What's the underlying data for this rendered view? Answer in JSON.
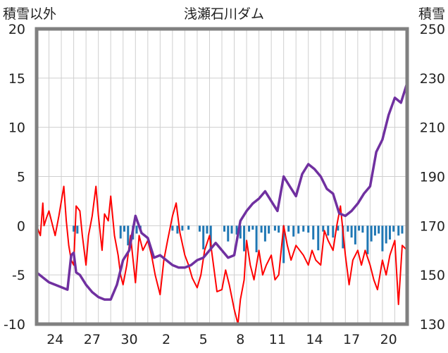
{
  "chart_data": {
    "type": "line",
    "title": "浅瀬石川ダム",
    "left_axis_label": "積雪以外",
    "right_axis_label": "積雪",
    "left_ylim": [
      -10,
      20
    ],
    "left_ticks": [
      20,
      15,
      10,
      5,
      0,
      -5,
      -10
    ],
    "right_ylim": [
      130,
      250
    ],
    "right_ticks": [
      250,
      230,
      210,
      190,
      170,
      150,
      130
    ],
    "x_range_days": [
      0,
      30
    ],
    "x_ticks": [
      {
        "day": 1.5,
        "label": "24"
      },
      {
        "day": 4.5,
        "label": "27"
      },
      {
        "day": 7.5,
        "label": "30"
      },
      {
        "day": 10.5,
        "label": "2"
      },
      {
        "day": 13.5,
        "label": "5"
      },
      {
        "day": 16.5,
        "label": "8"
      },
      {
        "day": 19.5,
        "label": "11"
      },
      {
        "day": 22.5,
        "label": "14"
      },
      {
        "day": 25.5,
        "label": "17"
      },
      {
        "day": 28.5,
        "label": "20"
      }
    ],
    "grid": true,
    "colors": {
      "red_series": "#ff0000",
      "purple_series": "#7030a0",
      "bars": "#1f77b4",
      "frame": "#808080"
    },
    "series": [
      {
        "axis": "left",
        "color": "#ff0000",
        "x": [
          0,
          0.3,
          0.5,
          0.6,
          0.8,
          1.0,
          1.2,
          1.5,
          1.8,
          2.0,
          2.2,
          2.4,
          2.6,
          2.8,
          3.0,
          3.2,
          3.5,
          3.7,
          4.0,
          4.2,
          4.5,
          4.8,
          5.0,
          5.3,
          5.5,
          5.8,
          6.0,
          6.3,
          6.6,
          6.8,
          7.0,
          7.3,
          7.6,
          8.0,
          8.3,
          8.6,
          9.0,
          9.3,
          9.6,
          10.0,
          10.3,
          10.6,
          11.0,
          11.3,
          11.6,
          12.0,
          12.3,
          12.6,
          13.0,
          13.3,
          13.6,
          14.0,
          14.3,
          14.6,
          15.0,
          15.3,
          15.6,
          16.0,
          16.3,
          16.5,
          16.8,
          17.0,
          17.3,
          17.6,
          18.0,
          18.3,
          18.6,
          19.0,
          19.3,
          19.6,
          20.0,
          20.3,
          20.6,
          21.0,
          21.3,
          21.6,
          22.0,
          22.3,
          22.6,
          23.0,
          23.3,
          23.6,
          24.0,
          24.3,
          24.6,
          25.0,
          25.3,
          25.6,
          26.0,
          26.3,
          26.6,
          27.0,
          27.3,
          27.6,
          28.0,
          28.3,
          28.6,
          29.0,
          29.3,
          29.6,
          30.0
        ],
        "values": [
          0,
          -1,
          2.3,
          0,
          0.8,
          1.5,
          0.5,
          -1,
          1,
          2.5,
          4,
          0.5,
          -2,
          -3.5,
          -4,
          2,
          1.5,
          -1,
          -4,
          -1,
          1,
          4,
          1,
          -2.5,
          1.2,
          0.5,
          3,
          -1,
          -3,
          -5,
          -6,
          -4,
          -1,
          -5.8,
          -1,
          -2.5,
          -1.5,
          -3,
          -5,
          -7,
          -3.5,
          -1.5,
          1,
          2.3,
          -0.7,
          -3,
          -4,
          -5.3,
          -6.3,
          -5,
          -2.5,
          -1,
          -3.8,
          -6.7,
          -6.5,
          -4.5,
          -6,
          -8.5,
          -10,
          -7.5,
          -5.5,
          -1.5,
          -4,
          -5.5,
          -2.5,
          -5,
          -4,
          -3,
          -5.5,
          -5,
          0,
          -2,
          -3.5,
          -2,
          -2.5,
          -3,
          -4,
          -2.5,
          -3.5,
          -4,
          -0.5,
          -1.5,
          -2.5,
          0,
          2,
          -3,
          -6,
          -3.5,
          -2.5,
          -4,
          -2.5,
          -4,
          -5.5,
          -6.5,
          -3.5,
          -5,
          -3,
          -1.5,
          -8,
          -2,
          -2.5
        ]
      },
      {
        "axis": "right",
        "color": "#7030a0",
        "x": [
          0,
          0.5,
          1.0,
          1.5,
          2.0,
          2.5,
          2.8,
          3.0,
          3.2,
          3.5,
          4.0,
          4.5,
          5.0,
          5.5,
          6.0,
          6.5,
          6.8,
          7.0,
          7.5,
          8.0,
          8.5,
          9.0,
          9.5,
          10.0,
          10.5,
          11.0,
          11.5,
          12.0,
          12.5,
          13.0,
          13.5,
          14.0,
          14.5,
          15.0,
          15.5,
          16.0,
          16.5,
          17.0,
          17.5,
          18.0,
          18.5,
          19.0,
          19.5,
          20.0,
          20.5,
          21.0,
          21.5,
          22.0,
          22.5,
          23.0,
          23.5,
          24.0,
          24.5,
          25.0,
          25.5,
          26.0,
          26.5,
          27.0,
          27.5,
          28.0,
          28.5,
          29.0,
          29.5,
          30.0
        ],
        "values": [
          151,
          149,
          147,
          146,
          145,
          144,
          158,
          159,
          151,
          150,
          146,
          143,
          141,
          140,
          140,
          146,
          152,
          156,
          160,
          174,
          167,
          165,
          157,
          158,
          156,
          154,
          153,
          153,
          154,
          156,
          157,
          160,
          163,
          160,
          157,
          158,
          172,
          176,
          179,
          181,
          184,
          180,
          176,
          190,
          186,
          182,
          191,
          195,
          193,
          190,
          185,
          183,
          175,
          174,
          176,
          179,
          183,
          186,
          200,
          205,
          215,
          222,
          220,
          228
        ]
      },
      {
        "type": "bar",
        "axis": "left",
        "color": "#1f77b4",
        "x": [
          3.0,
          3.3,
          6.8,
          7.1,
          7.4,
          7.8,
          8.1,
          8.4,
          11.0,
          11.4,
          11.8,
          12.3,
          13.2,
          13.5,
          13.8,
          14.1,
          15.2,
          15.5,
          15.8,
          16.2,
          16.5,
          16.8,
          17.2,
          17.5,
          17.8,
          18.2,
          18.5,
          18.8,
          19.3,
          19.6,
          20.0,
          20.4,
          20.8,
          21.2,
          21.6,
          22.0,
          22.4,
          22.8,
          23.2,
          23.6,
          24.0,
          24.4,
          24.8,
          25.2,
          25.5,
          25.8,
          26.1,
          26.4,
          26.8,
          27.1,
          27.4,
          27.7,
          28.0,
          28.3,
          28.6,
          28.9,
          29.3,
          29.6
        ],
        "values": [
          -0.6,
          -0.8,
          -1.3,
          -0.6,
          -2,
          -1.4,
          -0.8,
          -0.5,
          -0.5,
          -0.8,
          -0.5,
          -0.4,
          -0.6,
          -2.4,
          -0.8,
          -2.3,
          -0.6,
          -1.6,
          -0.8,
          -0.9,
          -1.3,
          -2.6,
          -0.6,
          -0.4,
          -2.7,
          -0.7,
          -1.6,
          -0.8,
          -0.5,
          -0.7,
          -3.8,
          -0.6,
          -1.1,
          -0.8,
          -0.6,
          -0.7,
          -1.4,
          -2.5,
          -0.6,
          -1,
          -1.2,
          -0.5,
          -2.3,
          -0.6,
          -1.2,
          -1.9,
          -0.5,
          -0.7,
          -2.9,
          -1.6,
          -1,
          -0.8,
          -2.6,
          -1.8,
          -1.4,
          -0.6,
          -1,
          -0.8
        ]
      }
    ]
  }
}
